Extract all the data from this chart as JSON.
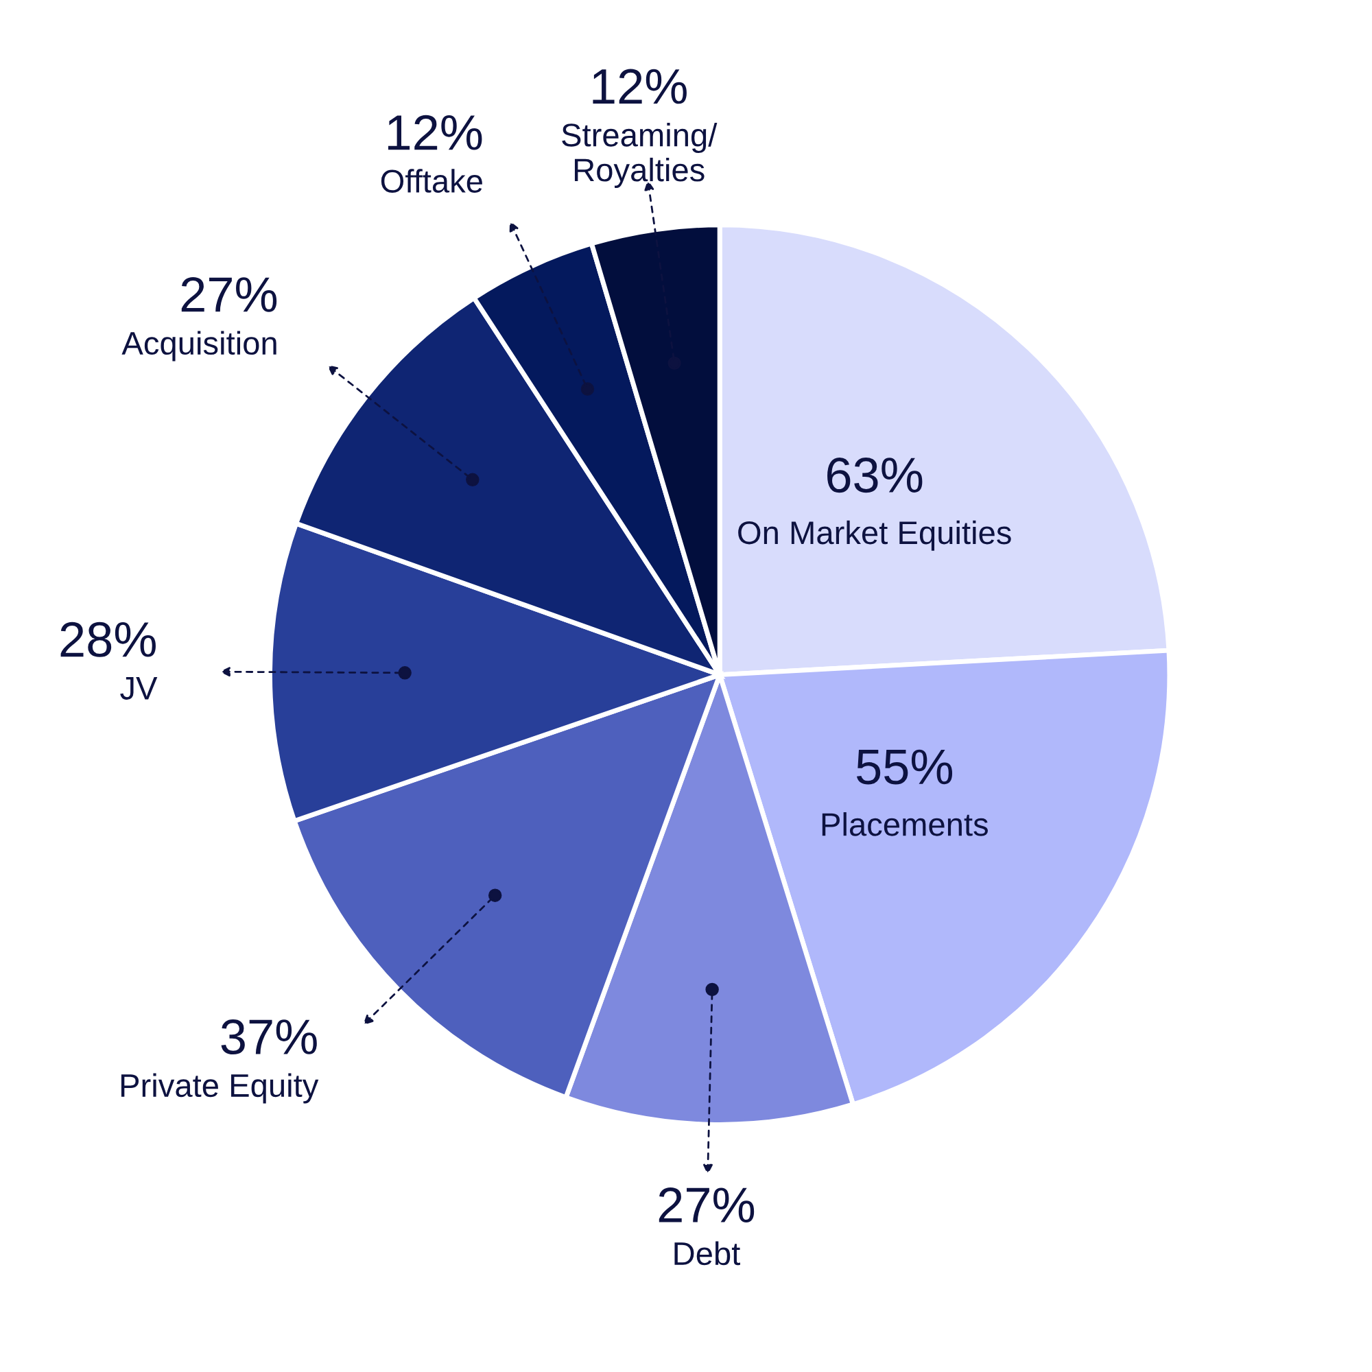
{
  "chart_data": {
    "type": "pie",
    "categories": [
      "On Market Equities",
      "Placements",
      "Debt",
      "Private Equity",
      "JV",
      "Acquisition",
      "Offtake",
      "Streaming/\nRoyalties"
    ],
    "values": [
      63,
      55,
      27,
      37,
      28,
      27,
      12,
      12
    ],
    "colors": [
      "#d8dcfc",
      "#b0b8fb",
      "#7e89de",
      "#4e60bd",
      "#283f99",
      "#0f2573",
      "#04195d",
      "#020e3d"
    ],
    "value_labels": [
      "63%",
      "55%",
      "27%",
      "37%",
      "28%",
      "27%",
      "12%",
      "12%"
    ]
  }
}
